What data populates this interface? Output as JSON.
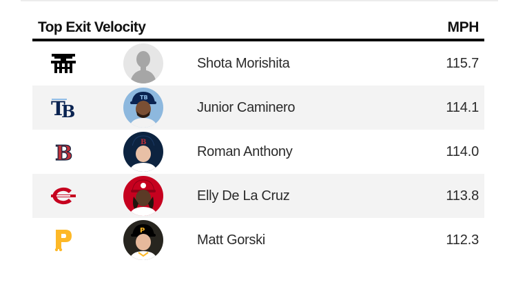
{
  "leaderboard": {
    "title": "Top Exit Velocity",
    "unit": "MPH",
    "rows": [
      {
        "player": "Shota Morishita",
        "velocity": "115.7",
        "team_logo": "hanshin-tigers-logo-icon",
        "headshot": "silhouette-placeholder-icon",
        "team_color": "#000000"
      },
      {
        "player": "Junior Caminero",
        "velocity": "114.1",
        "team_logo": "tampa-bay-rays-logo-icon",
        "headshot": "player-headshot-icon",
        "team_color": "#0a2351"
      },
      {
        "player": "Roman Anthony",
        "velocity": "114.0",
        "team_logo": "boston-red-sox-logo-icon",
        "headshot": "player-headshot-icon",
        "team_color": "#bd3039"
      },
      {
        "player": "Elly De La Cruz",
        "velocity": "113.8",
        "team_logo": "cincinnati-reds-logo-icon",
        "headshot": "player-headshot-icon",
        "team_color": "#c6011f"
      },
      {
        "player": "Matt Gorski",
        "velocity": "112.3",
        "team_logo": "pittsburgh-pirates-logo-icon",
        "headshot": "player-headshot-icon",
        "team_color": "#fdb827"
      }
    ]
  }
}
